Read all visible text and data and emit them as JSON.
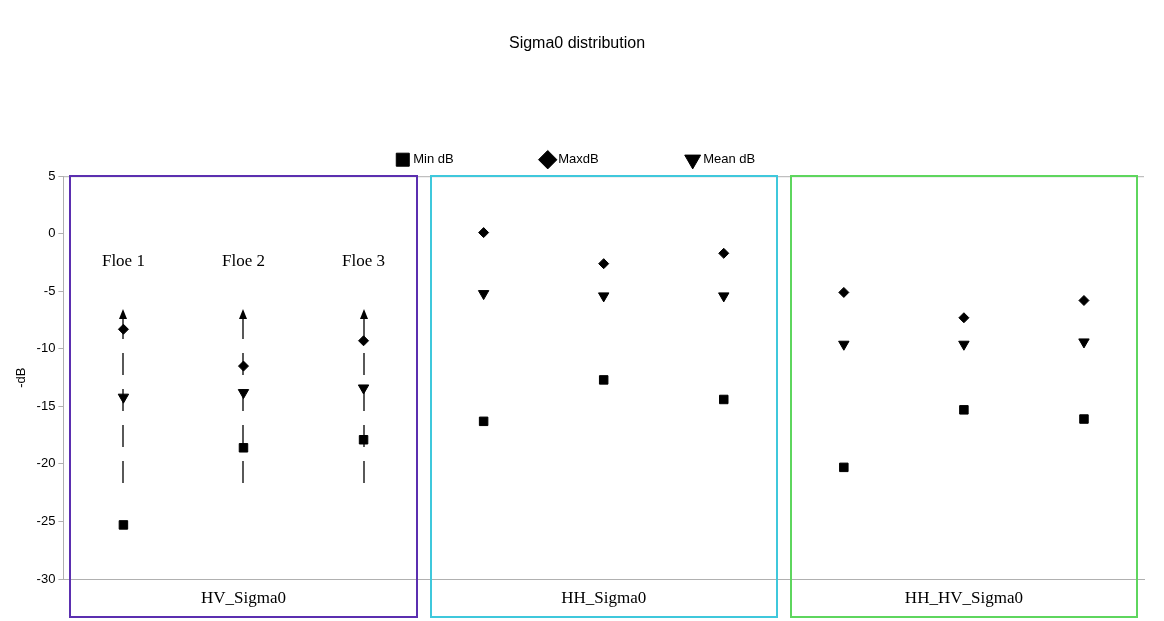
{
  "chart_data": {
    "type": "scatter",
    "title": "Sigma0 distribution",
    "ylabel": "-dB",
    "categories": [
      null,
      null,
      null,
      null,
      null,
      null,
      null,
      null,
      null
    ],
    "series": [
      {
        "name": "Min dB",
        "color": "#000000",
        "marker": "square",
        "values": [
          -25.3,
          -18.6,
          -17.9,
          -16.3,
          -12.7,
          -14.4,
          -20.3,
          -15.3,
          -16.1
        ]
      },
      {
        "name": "MaxdB",
        "color": "#000000",
        "marker": "diamond",
        "values": [
          -8.3,
          -11.5,
          -9.3,
          0.1,
          -2.6,
          -1.7,
          -5.1,
          -7.3,
          -5.8
        ]
      },
      {
        "name": "Mean dB",
        "color": "#000000",
        "marker": "triangle",
        "values": [
          -14.2,
          -13.8,
          -13.4,
          -5.2,
          -5.4,
          -5.4,
          -9.6,
          -9.6,
          -9.4
        ]
      }
    ],
    "ylim": [
      -30,
      5
    ],
    "yticks": [
      5,
      0,
      -5,
      -10,
      -15,
      -20,
      -25,
      -30
    ],
    "grid": false,
    "legend": "top",
    "annotations": [
      "Floe 1",
      "Floe 2",
      "Floe 3",
      "HV_Sigma0",
      "HH_Sigma0",
      "HH_HV_Sigma0"
    ]
  }
}
